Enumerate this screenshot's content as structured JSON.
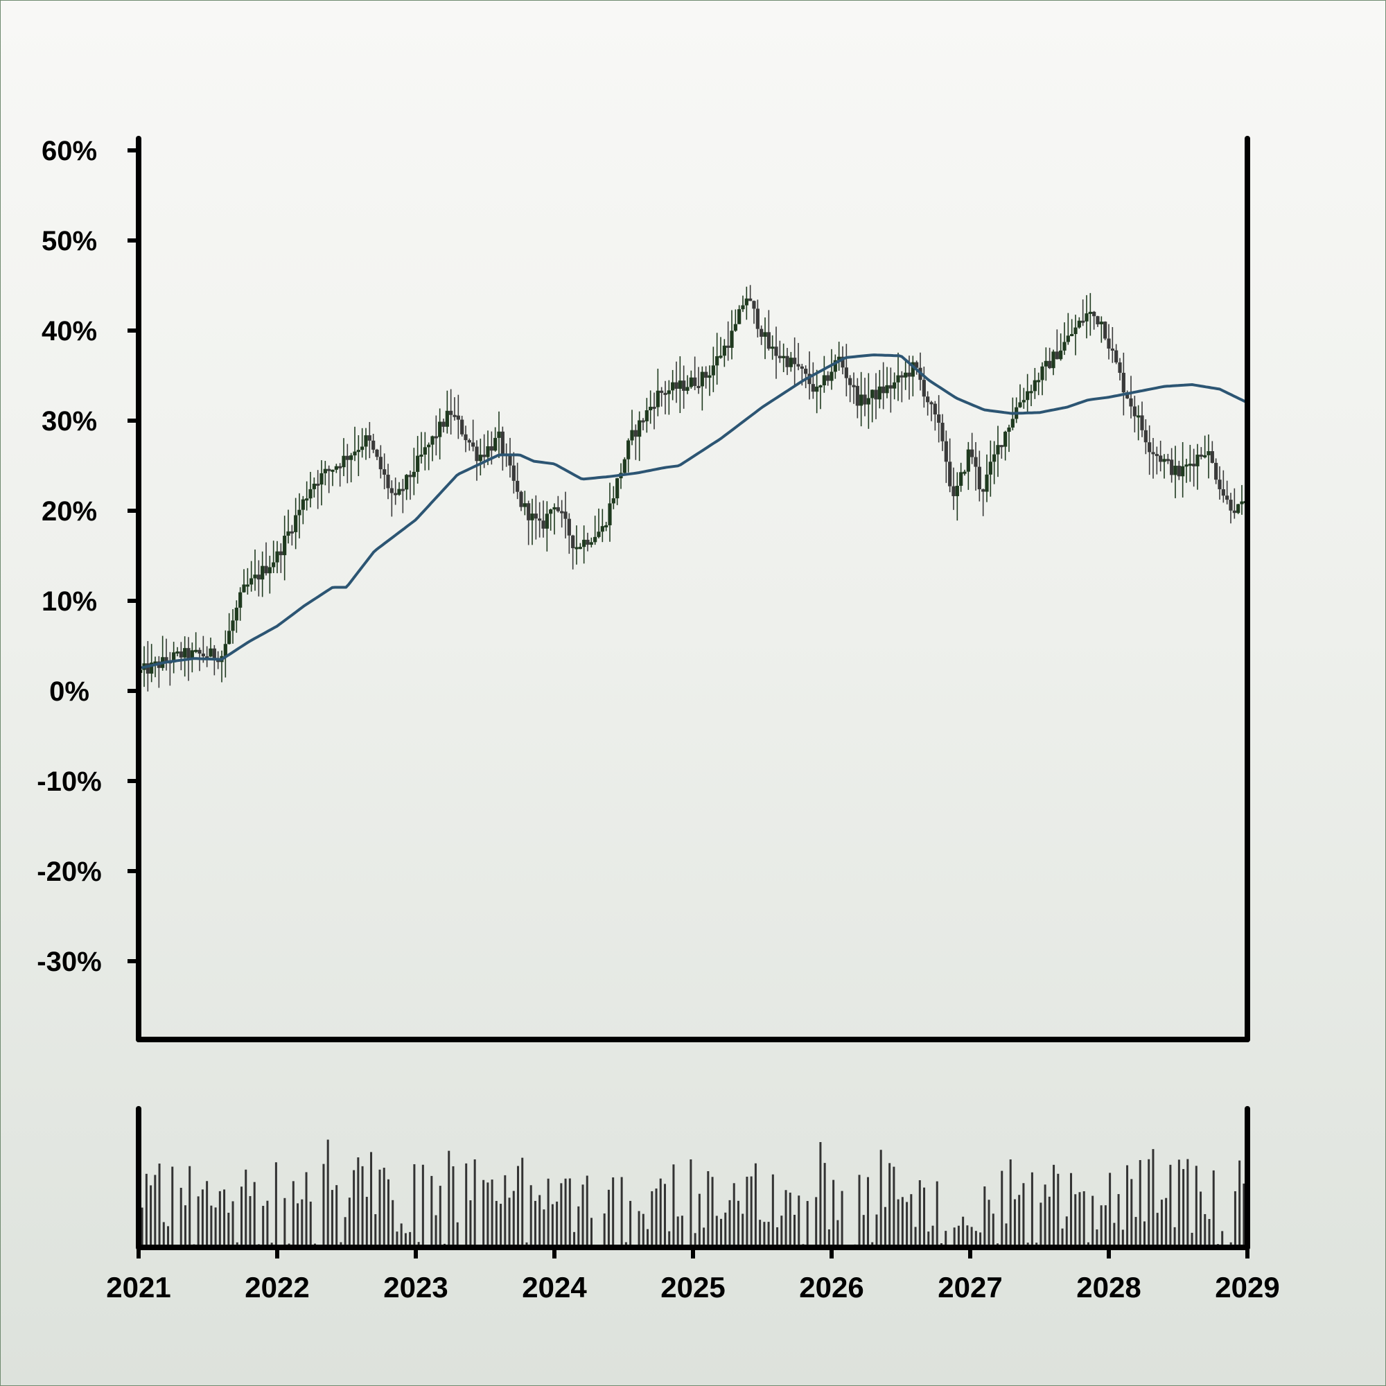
{
  "chart_data": {
    "type": "candlestick",
    "title": "",
    "xlabel": "",
    "ylabel": "",
    "x_range": [
      "2021",
      "2029"
    ],
    "ylim": [
      -38,
      60
    ],
    "yticks": [
      60,
      50,
      40,
      30,
      20,
      10,
      0,
      -10,
      -20,
      -30
    ],
    "ytick_labels": [
      "60%",
      "50%",
      "40%",
      "30%",
      "20%",
      "10%",
      "0%",
      "-10%",
      "-20%",
      "-30%"
    ],
    "xticks": [
      2021,
      2022,
      2023,
      2024,
      2025,
      2026,
      2027,
      2028,
      2029
    ],
    "xtick_labels": [
      "2021",
      "2022",
      "2023",
      "2024",
      "2025",
      "2026",
      "2027",
      "2028",
      "2029"
    ],
    "grid": false,
    "legend": "none",
    "colors": {
      "up": "#1f3a1f",
      "down": "#3a3a3a",
      "moving_average": "#2c5573",
      "volume": "#333333"
    },
    "price_path": {
      "x": [
        2021.0,
        2021.3,
        2021.6,
        2021.75,
        2022.0,
        2022.25,
        2022.5,
        2022.65,
        2022.85,
        2023.0,
        2023.25,
        2023.45,
        2023.6,
        2023.75,
        2023.9,
        2024.0,
        2024.15,
        2024.35,
        2024.55,
        2024.75,
        2024.95,
        2025.1,
        2025.3,
        2025.38,
        2025.55,
        2025.75,
        2025.9,
        2026.05,
        2026.2,
        2026.45,
        2026.6,
        2026.8,
        2026.88,
        2027.0,
        2027.08,
        2027.2,
        2027.35,
        2027.55,
        2027.75,
        2027.85,
        2027.95,
        2028.1,
        2028.3,
        2028.5,
        2028.7,
        2028.85,
        2028.95,
        2029.0
      ],
      "close": [
        2,
        4,
        4,
        11,
        15,
        23,
        26,
        28,
        21,
        25,
        31,
        26,
        28,
        21,
        18,
        21,
        16,
        18,
        28,
        33,
        34,
        35,
        40,
        44,
        38,
        36,
        33,
        37,
        32,
        34,
        36,
        28,
        21,
        27,
        22,
        27,
        32,
        36,
        40,
        42,
        41,
        34,
        27,
        24,
        27,
        21,
        20,
        22
      ]
    },
    "moving_average": {
      "x": [
        2021.0,
        2021.2,
        2021.4,
        2021.6,
        2021.8,
        2022.0,
        2022.2,
        2022.4,
        2022.5,
        2022.7,
        2023.0,
        2023.3,
        2023.6,
        2023.75,
        2023.85,
        2024.0,
        2024.2,
        2024.4,
        2024.6,
        2024.8,
        2024.9,
        2025.2,
        2025.5,
        2025.8,
        2026.1,
        2026.3,
        2026.5,
        2026.7,
        2026.9,
        2027.1,
        2027.3,
        2027.5,
        2027.7,
        2027.85,
        2028.0,
        2028.2,
        2028.4,
        2028.6,
        2028.8,
        2029.0
      ],
      "values": [
        2.5,
        3.2,
        3.6,
        3.5,
        5.5,
        7.2,
        9.5,
        11.5,
        11.5,
        15.5,
        19,
        24,
        26.2,
        26.2,
        25.5,
        25.2,
        23.5,
        23.8,
        24.2,
        24.8,
        25,
        28,
        31.5,
        34.5,
        37,
        37.3,
        37.2,
        34.5,
        32.5,
        31.2,
        30.8,
        30.9,
        31.5,
        32.3,
        32.6,
        33.2,
        33.8,
        34,
        33.5,
        32
      ]
    },
    "volume_panel": {
      "xticks": [
        2021,
        2022,
        2023,
        2024,
        2025,
        2026,
        2027,
        2028,
        2029
      ]
    }
  }
}
